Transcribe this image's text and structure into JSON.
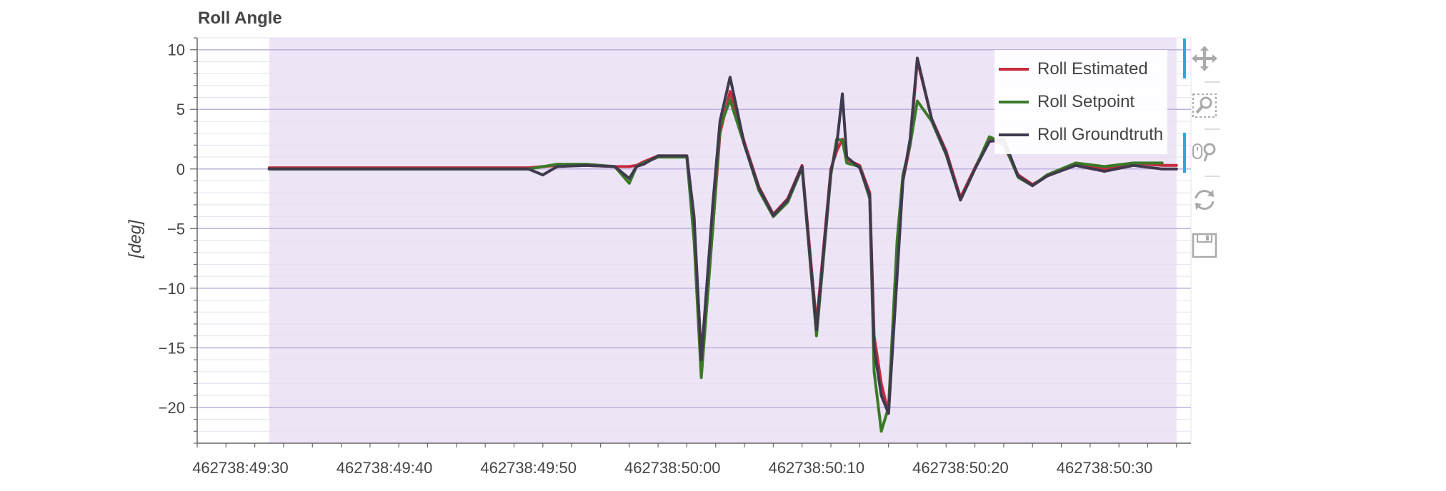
{
  "chart_data": {
    "type": "line",
    "title": "Roll Angle",
    "ylabel": "[deg]",
    "xlabel": "",
    "ylim": [
      -23,
      11
    ],
    "xlim": [
      -3,
      66
    ],
    "x_unit": "seconds after 462738:49:30",
    "xticks": [
      {
        "value": 0,
        "label": "462738:49:30"
      },
      {
        "value": 10,
        "label": "462738:49:40"
      },
      {
        "value": 20,
        "label": "462738:49:50"
      },
      {
        "value": 30,
        "label": "462738:50:00"
      },
      {
        "value": 40,
        "label": "462738:50:10"
      },
      {
        "value": 50,
        "label": "462738:50:20"
      },
      {
        "value": 60,
        "label": "462738:50:30"
      }
    ],
    "yticks": [
      10,
      5,
      0,
      -5,
      -10,
      -15,
      -20
    ],
    "highlight_region": {
      "x_start": 2,
      "x_end": 65,
      "color": "#ede4f6"
    },
    "grid": true,
    "legend_position": "top-right",
    "series": [
      {
        "name": "Roll Estimated",
        "color": "#c62a3e",
        "x": [
          2,
          8,
          14,
          20,
          22,
          24,
          26,
          27,
          27.5,
          28,
          29,
          31,
          31.5,
          32,
          32.8,
          33.3,
          34,
          35,
          36,
          37,
          38,
          39,
          40,
          41,
          41.4,
          41.8,
          42.1,
          43,
          43.7,
          44,
          44.5,
          45,
          45.6,
          46,
          46.5,
          47,
          48,
          49,
          50,
          51,
          52,
          53,
          54,
          55,
          56,
          58,
          60,
          62,
          64,
          65
        ],
        "y": [
          0.1,
          0.1,
          0.1,
          0.1,
          0.3,
          0.3,
          0.2,
          0.2,
          0.3,
          0.6,
          1.1,
          1.1,
          -5,
          -15.5,
          -5,
          3,
          6.5,
          2.2,
          -1.5,
          -3.8,
          -2.5,
          0.3,
          -13,
          0,
          1.5,
          2.5,
          0.8,
          0.3,
          -2,
          -14,
          -18,
          -20.5,
          -8,
          -1,
          2,
          9.1,
          4.2,
          1.5,
          -2.4,
          0.1,
          2.5,
          2,
          -0.5,
          -1.3,
          -0.6,
          0.4,
          0.0,
          0.5,
          0.3,
          0.3
        ]
      },
      {
        "name": "Roll Setpoint",
        "color": "#3a7a26",
        "x": [
          2,
          8,
          14,
          20,
          22,
          24,
          26,
          27,
          27.5,
          28,
          29,
          31,
          31.5,
          32,
          32.8,
          33.3,
          34,
          35,
          36,
          37,
          38,
          39,
          40,
          41,
          41.4,
          41.8,
          42.1,
          43,
          43.7,
          44,
          44.5,
          45,
          45.6,
          46,
          46.5,
          47,
          48,
          49,
          50,
          51,
          52,
          53,
          54,
          55,
          56,
          58,
          60,
          62,
          64,
          65
        ],
        "y": [
          0.0,
          0.0,
          0.0,
          0.0,
          0.4,
          0.4,
          0.2,
          -1.2,
          0.2,
          0.5,
          1.0,
          1.0,
          -6,
          -17.5,
          -5,
          3.5,
          5.8,
          2,
          -1.8,
          -4,
          -2.8,
          0.1,
          -14,
          -0.5,
          2.5,
          2.4,
          0.5,
          0.2,
          -2.5,
          -17,
          -22,
          -20,
          -6,
          -0.5,
          2,
          5.7,
          4,
          1.2,
          -2.6,
          0,
          2.7,
          2.2,
          -0.7,
          -1.4,
          -0.5,
          0.5,
          0.2,
          0.5,
          0.5,
          null
        ]
      },
      {
        "name": "Roll Groundtruth",
        "color": "#3f3a4e",
        "x": [
          2,
          8,
          14,
          20,
          21,
          22,
          24,
          26,
          27,
          27.5,
          28,
          29,
          31,
          31.5,
          32,
          32.8,
          33.3,
          34,
          35,
          36,
          37,
          38,
          39,
          40,
          41,
          41.4,
          41.8,
          42.1,
          43,
          43.7,
          44,
          44.5,
          45,
          45.6,
          46,
          46.5,
          47,
          48,
          49,
          50,
          51,
          52,
          53,
          54,
          55,
          56,
          58,
          60,
          62,
          64,
          65
        ],
        "y": [
          0.0,
          0.0,
          0.0,
          0.0,
          -0.5,
          0.2,
          0.3,
          0.2,
          -0.8,
          0.2,
          0.4,
          1.1,
          1.1,
          -4,
          -16,
          -3,
          4,
          7.7,
          2,
          -1.6,
          -3.9,
          -2.6,
          0.2,
          -13.5,
          -0.2,
          2,
          6.3,
          1,
          0.1,
          -2.2,
          -15,
          -19,
          -20.5,
          -9,
          -1,
          2.5,
          9.3,
          4.2,
          1.3,
          -2.6,
          0,
          2.3,
          2.5,
          -0.6,
          -1.4,
          -0.6,
          0.3,
          -0.2,
          0.3,
          0.0,
          0.0
        ]
      }
    ]
  },
  "toolbar": {
    "items": [
      {
        "name": "pan-icon",
        "active": true
      },
      {
        "name": "box-zoom-icon",
        "active": false
      },
      {
        "name": "wheel-zoom-icon",
        "active": true
      },
      {
        "name": "reset-icon",
        "active": false
      },
      {
        "name": "save-icon",
        "active": false
      }
    ]
  }
}
